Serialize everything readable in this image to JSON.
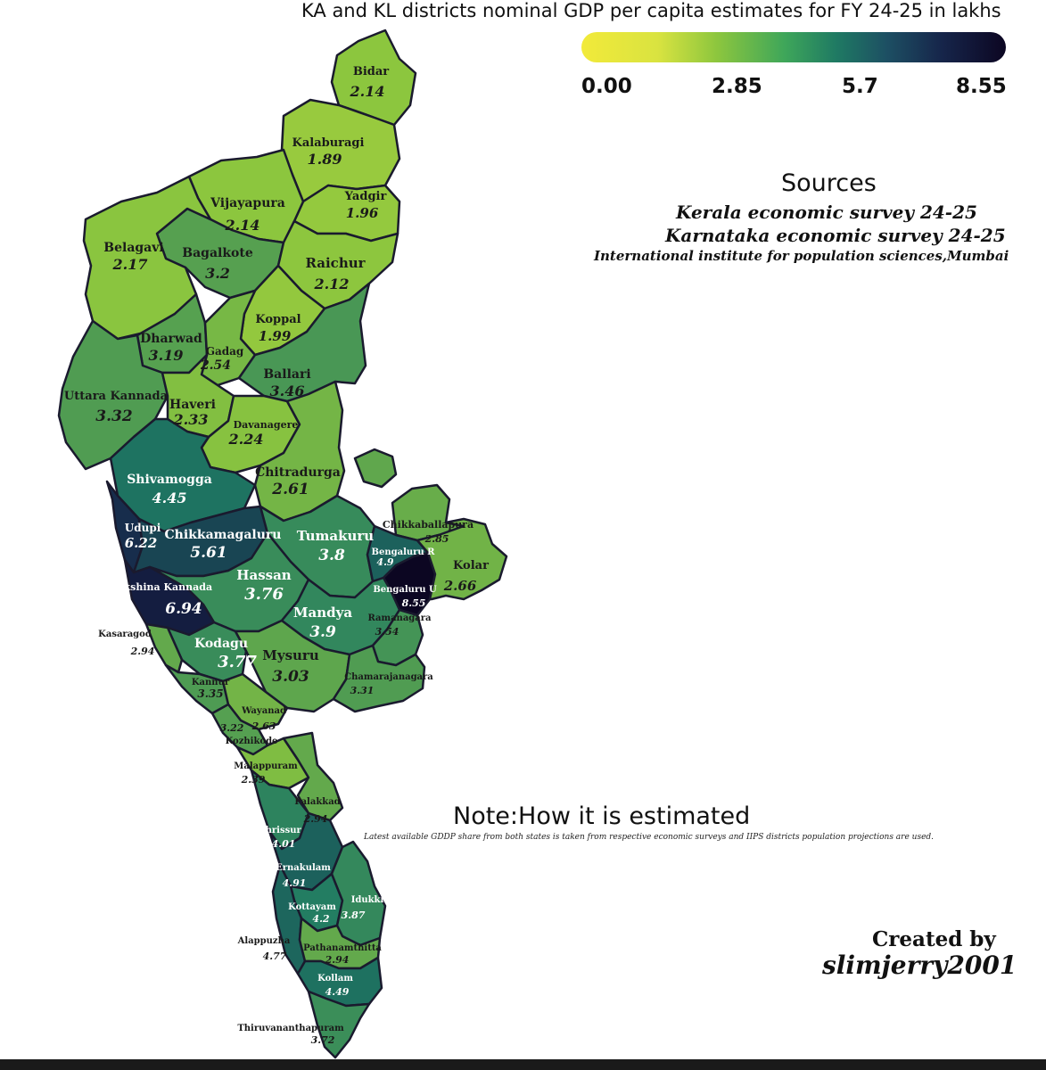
{
  "title": "KA and KL districts nominal GDP per capita estimates for FY 24-25 in lakhs",
  "legend": {
    "ticks": [
      "0.00",
      "2.85",
      "5.7",
      "8.55"
    ],
    "min": 0,
    "max": 8.55,
    "colors": [
      "#f2ea3a",
      "#8cc63e",
      "#1f7a63",
      "#16254a",
      "#0c0622"
    ]
  },
  "sources": {
    "heading": "Sources",
    "items": [
      "Kerala economic survey 24-25",
      "Karnataka economic survey 24-25",
      "International institute for population sciences,Mumbai"
    ]
  },
  "note": {
    "heading": "Note:How it is estimated",
    "text": "Latest available GDDP share from both states is taken from respective economic surveys and IIPS districts population projections are used."
  },
  "credit": {
    "line1": "Created by",
    "line2": "slimjerry2001"
  },
  "districts": [
    {
      "name": "Bidar",
      "value": "2.14"
    },
    {
      "name": "Kalaburagi",
      "value": "1.89"
    },
    {
      "name": "Yadgir",
      "value": "1.96"
    },
    {
      "name": "Vijayapura",
      "value": "2.14"
    },
    {
      "name": "Bagalkote",
      "value": "3.2"
    },
    {
      "name": "Raichur",
      "value": "2.12"
    },
    {
      "name": "Belagavi",
      "value": "2.17"
    },
    {
      "name": "Koppal",
      "value": "1.99"
    },
    {
      "name": "Dharwad",
      "value": "3.19"
    },
    {
      "name": "Gadag",
      "value": "2.54"
    },
    {
      "name": "Ballari",
      "value": "3.46"
    },
    {
      "name": "Uttara Kannada",
      "value": "3.32"
    },
    {
      "name": "Haveri",
      "value": "2.33"
    },
    {
      "name": "Davanagere",
      "value": "2.24"
    },
    {
      "name": "Chitradurga",
      "value": "2.61"
    },
    {
      "name": "Shivamogga",
      "value": "4.45"
    },
    {
      "name": "Udupi",
      "value": "6.22"
    },
    {
      "name": "Chikkamagaluru",
      "value": "5.61"
    },
    {
      "name": "Tumakuru",
      "value": "3.8"
    },
    {
      "name": "Chikkaballapura",
      "value": "2.85"
    },
    {
      "name": "Bengaluru R",
      "value": "4.9"
    },
    {
      "name": "Bengaluru U",
      "value": "8.55"
    },
    {
      "name": "Kolar",
      "value": "2.66"
    },
    {
      "name": "Hassan",
      "value": "3.76"
    },
    {
      "name": "Dakshina Kannada",
      "value": "6.94"
    },
    {
      "name": "Mandya",
      "value": "3.9"
    },
    {
      "name": "Ramanagara",
      "value": "3.54"
    },
    {
      "name": "Kodagu",
      "value": "3.77"
    },
    {
      "name": "Mysuru",
      "value": "3.03"
    },
    {
      "name": "Chamarajanagara",
      "value": "3.31"
    },
    {
      "name": "Kasaragod",
      "value": "2.94"
    },
    {
      "name": "Kannur",
      "value": "3.35"
    },
    {
      "name": "Wayanad",
      "value": "2.63"
    },
    {
      "name": "Kozhikode",
      "value": "3.22"
    },
    {
      "name": "Malappuram",
      "value": "2.39"
    },
    {
      "name": "Palakkad",
      "value": "2.94"
    },
    {
      "name": "Thrissur",
      "value": "4.01"
    },
    {
      "name": "Ernakulam",
      "value": "4.91"
    },
    {
      "name": "Kottayam",
      "value": "4.2"
    },
    {
      "name": "Idukki",
      "value": "3.87"
    },
    {
      "name": "Alappuzha",
      "value": "4.77"
    },
    {
      "name": "Pathanamthitta",
      "value": "2.94"
    },
    {
      "name": "Kollam",
      "value": "4.49"
    },
    {
      "name": "Thiruvananthapuram",
      "value": "3.72"
    }
  ]
}
